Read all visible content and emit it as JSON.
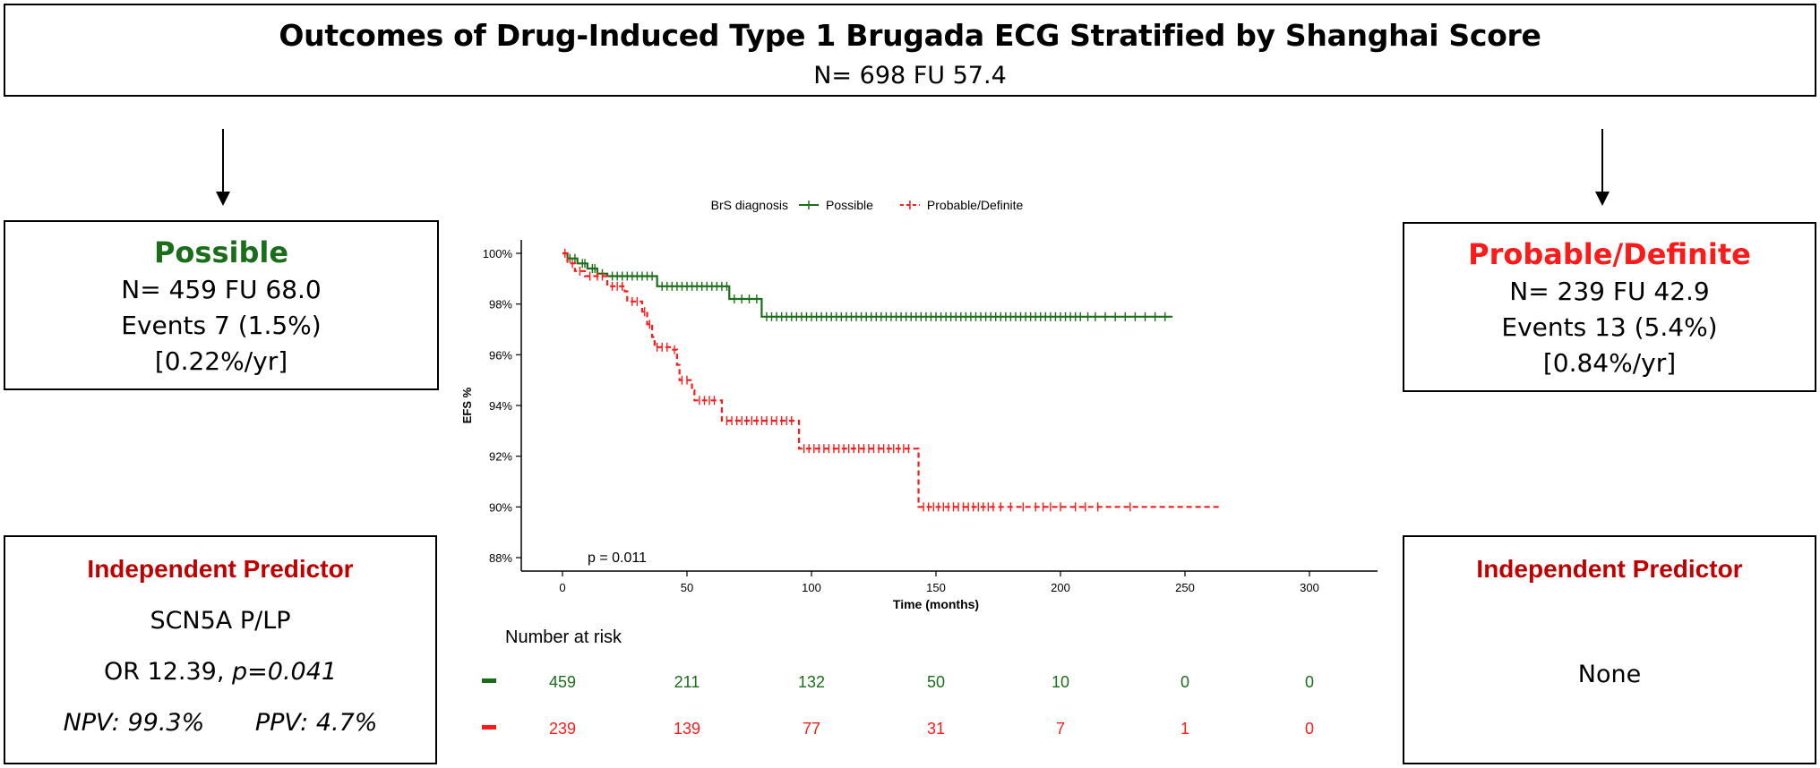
{
  "header": {
    "title": "Outcomes of Drug-Induced Type 1 Brugada ECG Stratified by Shanghai Score",
    "subtitle": "N= 698  FU 57.4"
  },
  "groups": {
    "possible": {
      "name": "Possible",
      "color": "#1a6e1a",
      "n_fu": "N= 459  FU 68.0",
      "events": "Events 7 (1.5%)",
      "rate": "[0.22%/yr]"
    },
    "probable": {
      "name": "Probable/Definite",
      "color": "#ff1a1a",
      "n_fu": "N= 239  FU 42.9",
      "events": "Events 13 (5.4%)",
      "rate": "[0.84%/yr]"
    }
  },
  "predictors": {
    "left": {
      "heading": "Independent Predictor",
      "line1": "SCN5A P/LP",
      "or_text": "OR 12.39, ",
      "p_text": "p=0.041",
      "npv": "NPV: 99.3%",
      "ppv": "PPV: 4.7%"
    },
    "right": {
      "heading": "Independent Predictor",
      "line1": "None"
    }
  },
  "chart_data": {
    "type": "line",
    "subtype": "kaplan-meier",
    "legend_title": "BrS diagnosis",
    "legend_position": "top",
    "xlabel": "Time (months)",
    "ylabel": "EFS %",
    "xlim": [
      0,
      300
    ],
    "ylim": [
      88,
      100
    ],
    "xticks": [
      0,
      50,
      100,
      150,
      200,
      250,
      300
    ],
    "yticks": [
      88,
      90,
      92,
      94,
      96,
      98,
      100
    ],
    "ytick_labels": [
      "88%",
      "90%",
      "92%",
      "94%",
      "96%",
      "98%",
      "100%"
    ],
    "annotation": "p = 0.011",
    "series": [
      {
        "name": "Possible",
        "color": "#1a6e1a",
        "dash": false,
        "steps": [
          [
            0,
            100
          ],
          [
            2,
            99.8
          ],
          [
            6,
            99.6
          ],
          [
            10,
            99.4
          ],
          [
            14,
            99.2
          ],
          [
            18,
            99.1
          ],
          [
            38,
            98.7
          ],
          [
            67,
            98.2
          ],
          [
            80,
            97.5
          ],
          [
            245,
            97.5
          ]
        ],
        "censors": [
          3,
          5,
          8,
          9,
          12,
          13,
          16,
          20,
          22,
          24,
          26,
          28,
          30,
          32,
          34,
          36,
          40,
          42,
          44,
          46,
          48,
          50,
          52,
          54,
          56,
          58,
          60,
          62,
          64,
          66,
          69,
          72,
          75,
          78,
          82,
          84,
          86,
          88,
          90,
          92,
          94,
          96,
          98,
          100,
          102,
          104,
          106,
          108,
          110,
          112,
          114,
          116,
          118,
          120,
          122,
          124,
          126,
          128,
          130,
          132,
          134,
          136,
          138,
          140,
          142,
          144,
          146,
          148,
          150,
          152,
          154,
          156,
          158,
          160,
          162,
          164,
          166,
          168,
          170,
          172,
          174,
          176,
          178,
          180,
          182,
          184,
          186,
          188,
          190,
          192,
          194,
          196,
          198,
          200,
          202,
          204,
          206,
          208,
          211,
          214,
          218,
          222,
          226,
          230,
          234,
          238,
          242
        ]
      },
      {
        "name": "Probable/Definite",
        "color": "#ff1a1a",
        "dash": true,
        "steps": [
          [
            0,
            100
          ],
          [
            2,
            99.6
          ],
          [
            5,
            99.3
          ],
          [
            9,
            99.1
          ],
          [
            18,
            98.7
          ],
          [
            25,
            98.5
          ],
          [
            26,
            98.1
          ],
          [
            32,
            97.7
          ],
          [
            34,
            97.2
          ],
          [
            36,
            96.7
          ],
          [
            37,
            96.3
          ],
          [
            44,
            96.2
          ],
          [
            46,
            95.6
          ],
          [
            47,
            95.0
          ],
          [
            52,
            94.6
          ],
          [
            53,
            94.2
          ],
          [
            64,
            93.4
          ],
          [
            95,
            92.3
          ],
          [
            143,
            90.0
          ],
          [
            264,
            90.0
          ]
        ],
        "censors": [
          1,
          4,
          7,
          11,
          14,
          16,
          20,
          22,
          24,
          28,
          30,
          33,
          35,
          38,
          40,
          42,
          45,
          48,
          50,
          55,
          57,
          59,
          61,
          66,
          68,
          70,
          72,
          74,
          76,
          78,
          80,
          82,
          84,
          86,
          88,
          90,
          92,
          97,
          99,
          101,
          103,
          105,
          107,
          109,
          111,
          113,
          115,
          117,
          119,
          121,
          123,
          125,
          127,
          129,
          131,
          133,
          135,
          137,
          139,
          145,
          147,
          149,
          151,
          153,
          155,
          157,
          159,
          161,
          163,
          165,
          167,
          169,
          171,
          173,
          176,
          180,
          185,
          190,
          193,
          196,
          200,
          206,
          210,
          215,
          228
        ]
      }
    ],
    "risk_table": {
      "title": "Number at risk",
      "times": [
        0,
        50,
        100,
        150,
        200,
        250,
        300
      ],
      "rows": [
        {
          "name": "Possible",
          "color": "#1a6e1a",
          "values": [
            459,
            211,
            132,
            50,
            10,
            0,
            0
          ]
        },
        {
          "name": "Probable/Definite",
          "color": "#ff1a1a",
          "values": [
            239,
            139,
            77,
            31,
            7,
            1,
            0
          ]
        }
      ]
    }
  }
}
